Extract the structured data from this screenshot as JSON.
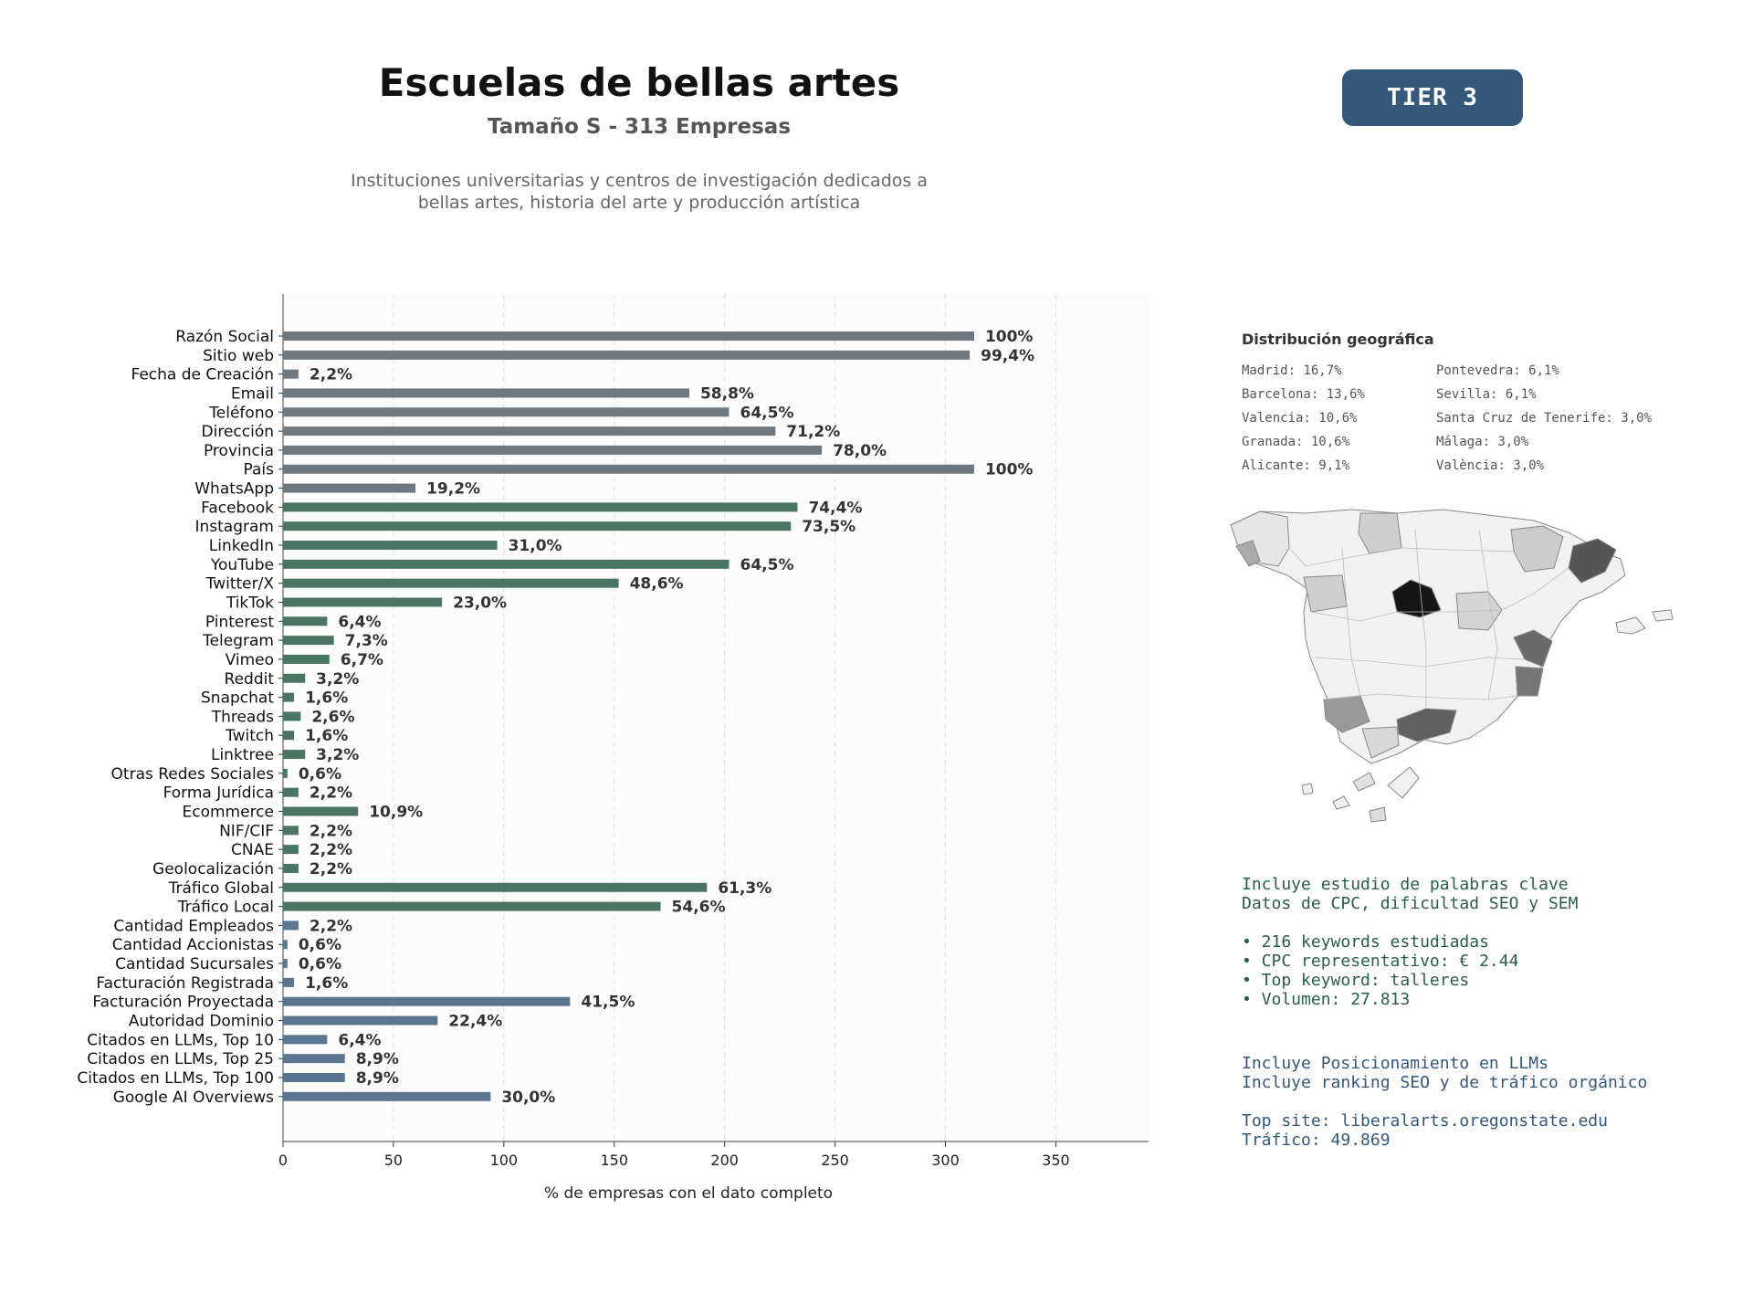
{
  "header": {
    "title": "Escuelas de bellas artes",
    "subtitle": "Tamaño S - 313 Empresas",
    "description_line1": "Instituciones universitarias y centros de investigación dedicados a",
    "description_line2": "bellas artes, historia del arte y producción artística",
    "tier": "TIER 3"
  },
  "colors": {
    "gray": "#6e7880",
    "green": "#4a7562",
    "blue": "#5a7690",
    "tier_bg": "#34577a"
  },
  "chart_data": {
    "type": "bar",
    "orientation": "horizontal",
    "xlabel": "% de empresas con el dato completo",
    "xlim": [
      0,
      392
    ],
    "xticks": [
      0,
      50,
      100,
      150,
      200,
      250,
      300,
      350
    ],
    "grid": "vertical dashed",
    "categories": [
      "Razón Social",
      "Sitio web",
      "Fecha de Creación",
      "Email",
      "Teléfono",
      "Dirección",
      "Provincia",
      "País",
      "WhatsApp",
      "Facebook",
      "Instagram",
      "LinkedIn",
      "YouTube",
      "Twitter/X",
      "TikTok",
      "Pinterest",
      "Telegram",
      "Vimeo",
      "Reddit",
      "Snapchat",
      "Threads",
      "Twitch",
      "Linktree",
      "Otras Redes Sociales",
      "Forma Jurídica",
      "Ecommerce",
      "NIF/CIF",
      "CNAE",
      "Geolocalización",
      "Tráfico Global",
      "Tráfico Local",
      "Cantidad Empleados",
      "Cantidad Accionistas",
      "Cantidad Sucursales",
      "Facturación Registrada",
      "Facturación Proyectada",
      "Autoridad Dominio",
      "Citados en LLMs, Top 10",
      "Citados en LLMs, Top 25",
      "Citados en LLMs, Top 100",
      "Google AI Overviews"
    ],
    "values": [
      313,
      311,
      7,
      184,
      202,
      223,
      244,
      313,
      60,
      233,
      230,
      97,
      202,
      152,
      72,
      20,
      23,
      21,
      10,
      5,
      8,
      5,
      10,
      2,
      7,
      34,
      7,
      7,
      7,
      192,
      171,
      7,
      2,
      2,
      5,
      130,
      70,
      20,
      28,
      28,
      94
    ],
    "labels": [
      "100%",
      "99,4%",
      "2,2%",
      "58,8%",
      "64,5%",
      "71,2%",
      "78,0%",
      "100%",
      "19,2%",
      "74,4%",
      "73,5%",
      "31,0%",
      "64,5%",
      "48,6%",
      "23,0%",
      "6,4%",
      "7,3%",
      "6,7%",
      "3,2%",
      "1,6%",
      "2,6%",
      "1,6%",
      "3,2%",
      "0,6%",
      "2,2%",
      "10,9%",
      "2,2%",
      "2,2%",
      "2,2%",
      "61,3%",
      "54,6%",
      "2,2%",
      "0,6%",
      "0,6%",
      "1,6%",
      "41,5%",
      "22,4%",
      "6,4%",
      "8,9%",
      "8,9%",
      "30,0%"
    ],
    "groups": [
      "gray",
      "gray",
      "gray",
      "gray",
      "gray",
      "gray",
      "gray",
      "gray",
      "gray",
      "green",
      "green",
      "green",
      "green",
      "green",
      "green",
      "green",
      "green",
      "green",
      "green",
      "green",
      "green",
      "green",
      "green",
      "green",
      "green",
      "green",
      "green",
      "green",
      "green",
      "green",
      "green",
      "blue",
      "blue",
      "blue",
      "blue",
      "blue",
      "blue",
      "blue",
      "blue",
      "blue",
      "blue"
    ]
  },
  "geo": {
    "title": "Distribución geográfica",
    "items": [
      "Madrid: 16,7%",
      "Barcelona: 13,6%",
      "Valencia: 10,6%",
      "Granada: 10,6%",
      "Alicante: 9,1%",
      "Pontevedra: 6,1%",
      "Sevilla: 6,1%",
      "Santa Cruz de Tenerife: 3,0%",
      "Málaga: 3,0%",
      "València: 3,0%"
    ]
  },
  "keywords": {
    "line1": "Incluye estudio de palabras clave",
    "line2": "Datos de CPC, dificultad SEO y SEM",
    "bullet1": "• 216 keywords estudiadas",
    "bullet2": "• CPC representativo: € 2.44",
    "bullet3": "• Top keyword: talleres",
    "bullet4": "• Volumen: 27.813"
  },
  "llm": {
    "line1": "Incluye Posicionamiento en LLMs",
    "line2": "Incluye ranking SEO y de tráfico orgánico",
    "top_site": "Top site: liberalarts.oregonstate.edu",
    "traffic": "Tráfico: 49.869"
  }
}
